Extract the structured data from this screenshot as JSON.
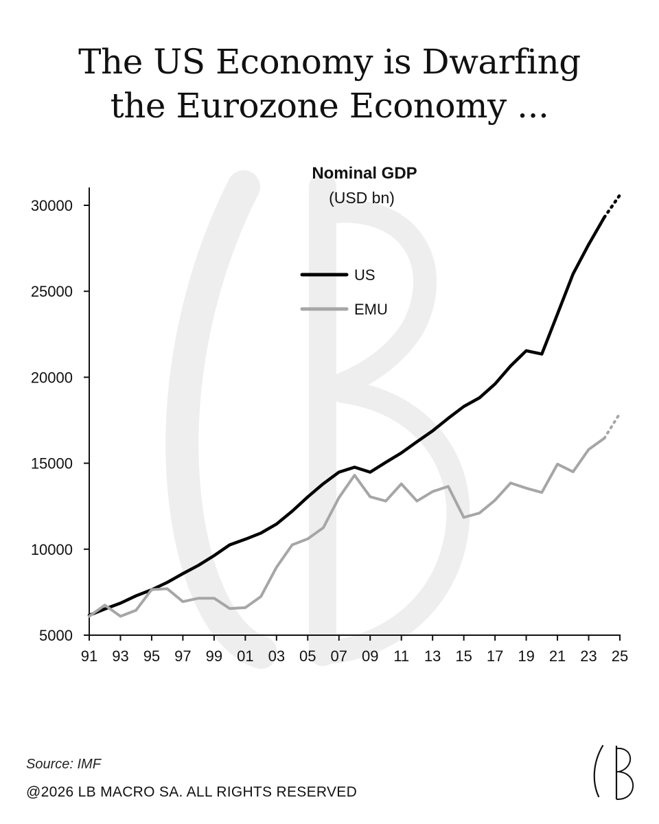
{
  "header": {
    "title_line1": "The US Economy is Dwarfing",
    "title_line2": "the Eurozone Economy ..."
  },
  "chart_data": {
    "type": "line",
    "title": "Nominal GDP",
    "subtitle": "(USD bn)",
    "xlabel": "",
    "ylabel": "",
    "x": [
      1991,
      1992,
      1993,
      1994,
      1995,
      1996,
      1997,
      1998,
      1999,
      2000,
      2001,
      2002,
      2003,
      2004,
      2005,
      2006,
      2007,
      2008,
      2009,
      2010,
      2011,
      2012,
      2013,
      2014,
      2015,
      2016,
      2017,
      2018,
      2019,
      2020,
      2021,
      2022,
      2023,
      2024
    ],
    "x_tick_labels": [
      "91",
      "93",
      "95",
      "97",
      "99",
      "01",
      "03",
      "05",
      "07",
      "09",
      "11",
      "13",
      "15",
      "17",
      "19",
      "21",
      "23",
      "25"
    ],
    "x_tick_values": [
      1991,
      1993,
      1995,
      1997,
      1999,
      2001,
      2003,
      2005,
      2007,
      2009,
      2011,
      2013,
      2015,
      2017,
      2019,
      2021,
      2023,
      2025
    ],
    "xlim": [
      1991,
      2025
    ],
    "ylim": [
      5000,
      31000
    ],
    "y_ticks": [
      5000,
      10000,
      15000,
      20000,
      25000,
      30000
    ],
    "legend_position": "upper-center",
    "series": [
      {
        "name": "US",
        "color": "#000000",
        "values": [
          6160,
          6520,
          6860,
          7290,
          7640,
          8070,
          8580,
          9060,
          9630,
          10250,
          10580,
          10940,
          11460,
          12210,
          13040,
          13810,
          14480,
          14770,
          14480,
          15050,
          15600,
          16250,
          16880,
          17610,
          18300,
          18800,
          19610,
          20660,
          21540,
          21350,
          23680,
          26010,
          27720,
          29300
        ],
        "projection": {
          "x": [
            2024,
            2025
          ],
          "values": [
            29300,
            30600
          ]
        }
      },
      {
        "name": "EMU",
        "color": "#a6a6a6",
        "values": [
          6100,
          6750,
          6100,
          6450,
          7650,
          7700,
          6950,
          7150,
          7150,
          6550,
          6600,
          7250,
          8950,
          10250,
          10600,
          11250,
          13000,
          14300,
          13050,
          12800,
          13800,
          12800,
          13350,
          13650,
          11850,
          12100,
          12850,
          13850,
          13550,
          13300,
          14950,
          14500,
          15800,
          16450
        ],
        "projection": {
          "x": [
            2024,
            2025
          ],
          "values": [
            16450,
            17900
          ]
        }
      }
    ]
  },
  "footer": {
    "source": "Source: IMF",
    "rights": "@2026 LB MACRO SA. ALL RIGHTS RESERVED"
  },
  "brand": {
    "logo_name": "lb-monogram",
    "watermark_color": "#eeeeee"
  }
}
